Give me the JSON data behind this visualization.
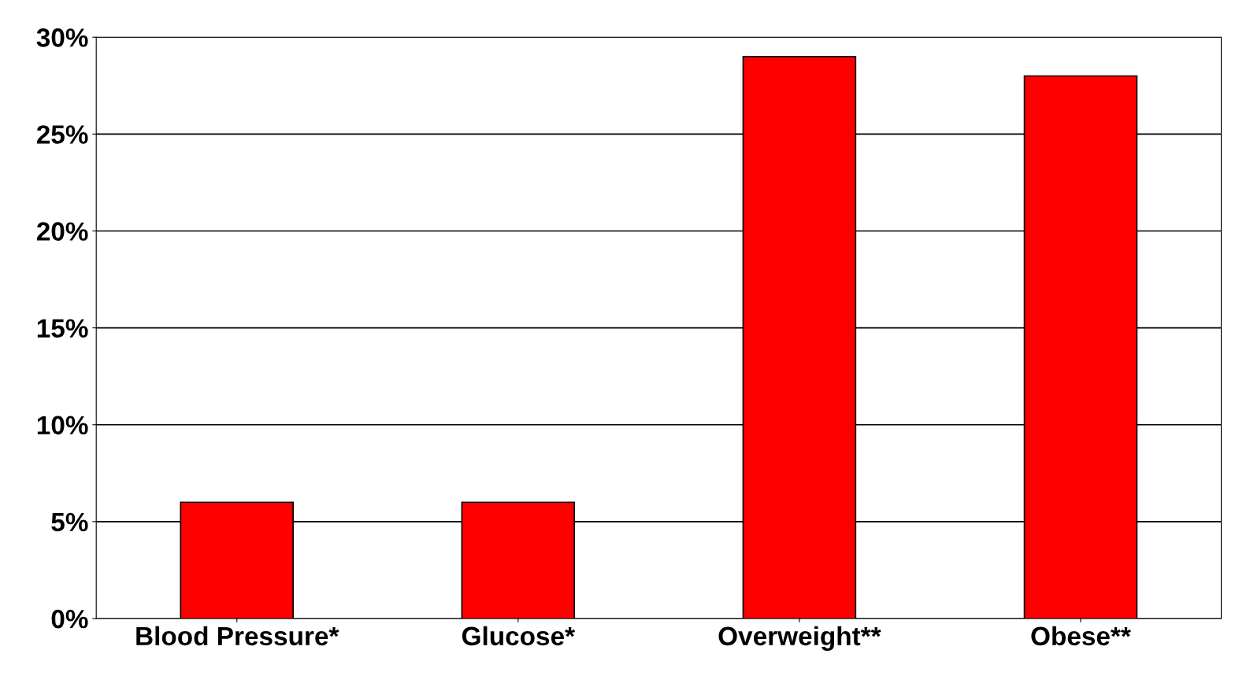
{
  "chart_data": {
    "type": "bar",
    "categories": [
      "Blood Pressure*",
      "Glucose*",
      "Overweight**",
      "Obese**"
    ],
    "values": [
      6.0,
      6.0,
      29.0,
      28.0
    ],
    "color": "#ff0000",
    "ylim": [
      0,
      30
    ],
    "yticks": [
      {
        "value": 0,
        "label": "0%"
      },
      {
        "value": 5,
        "label": "5%"
      },
      {
        "value": 10,
        "label": "10%"
      },
      {
        "value": 15,
        "label": "15%"
      },
      {
        "value": 20,
        "label": "20%"
      },
      {
        "value": 25,
        "label": "25%"
      },
      {
        "value": 30,
        "label": "30%"
      }
    ],
    "grid": "y",
    "legend": false
  }
}
